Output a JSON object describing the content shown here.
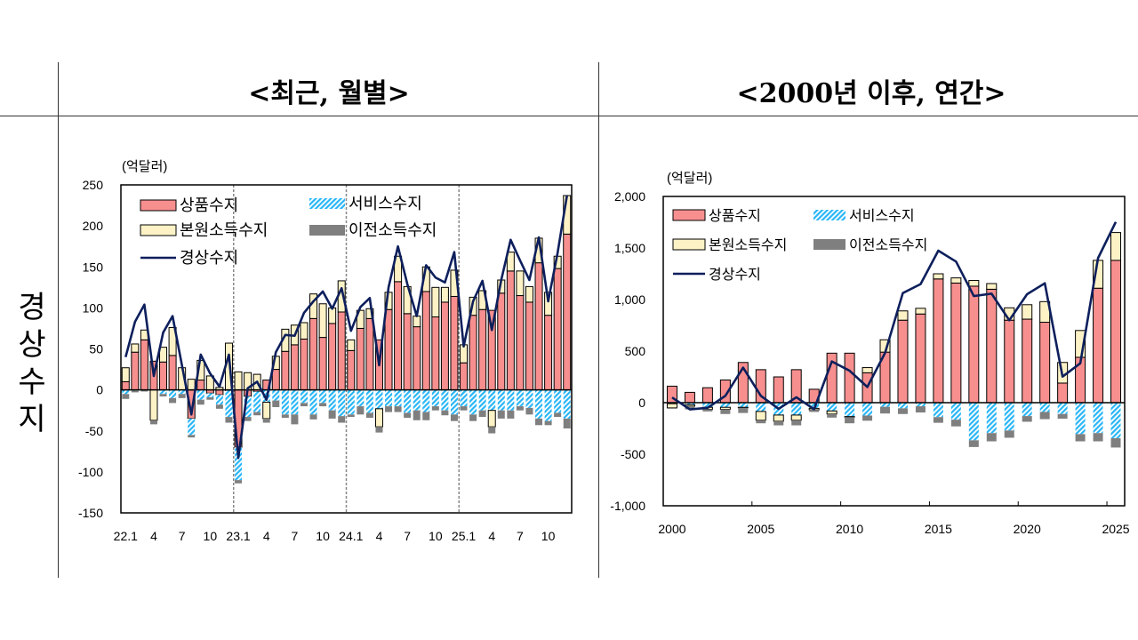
{
  "header": {
    "left_title": "<최근, 월별>",
    "right_title": "<2000년 이후, 연간>",
    "row_label": "경상수지"
  },
  "colors": {
    "goods": "#f78f8f",
    "services": "#29b6f6",
    "primary_income": "#fdf2c6",
    "secondary_income": "#7f7f7f",
    "current_account": "#0d1f5c"
  },
  "chart_data": [
    {
      "type": "bar",
      "stacked": true,
      "unit_label": "(억달러)",
      "ylim": [
        -150,
        250
      ],
      "y_ticks": [
        "250",
        "200",
        "150",
        "100",
        "50",
        "0",
        "-50",
        "-100",
        "-150"
      ],
      "y_tick_values": [
        250,
        200,
        150,
        100,
        50,
        0,
        -50,
        -100,
        -150
      ],
      "grid": false,
      "legend_position": "top-left",
      "categories": [
        "22.1",
        "22.2",
        "22.3",
        "22.4",
        "22.5",
        "22.6",
        "22.7",
        "22.8",
        "22.9",
        "22.10",
        "22.11",
        "22.12",
        "23.1",
        "23.2",
        "23.3",
        "23.4",
        "23.5",
        "23.6",
        "23.7",
        "23.8",
        "23.9",
        "23.10",
        "23.11",
        "23.12",
        "24.1",
        "24.2",
        "24.3",
        "24.4",
        "24.5",
        "24.6",
        "24.7",
        "24.8",
        "24.9",
        "24.10",
        "24.11",
        "24.12",
        "25.1",
        "25.2",
        "25.3",
        "25.4",
        "25.5",
        "25.6",
        "25.7",
        "25.8",
        "25.9",
        "25.10",
        "25.11",
        "25.12"
      ],
      "x_tick_labels": [
        "22.1",
        "4",
        "7",
        "10",
        "23.1",
        "4",
        "7",
        "10",
        "24.1",
        "4",
        "7",
        "10",
        "25.1",
        "4",
        "7",
        "10"
      ],
      "year_dividers_after": [
        "22.12",
        "23.12",
        "24.12"
      ],
      "series": [
        {
          "name": "상품수지",
          "kind": "bar",
          "values": [
            10,
            46,
            61,
            35,
            34,
            42,
            0,
            -35,
            12,
            -4,
            -6,
            -1,
            -70,
            -8,
            -2,
            12,
            25,
            47,
            55,
            62,
            87,
            64,
            81,
            95,
            48,
            75,
            87,
            61,
            98,
            132,
            93,
            77,
            120,
            89,
            107,
            114,
            33,
            91,
            98,
            97,
            118,
            145,
            115,
            107,
            155,
            91,
            148,
            190
          ]
        },
        {
          "name": "서비스수지",
          "kind": "bar",
          "values": [
            -5,
            -1,
            0,
            0,
            -5,
            -10,
            -5,
            -20,
            -12,
            -5,
            -12,
            -32,
            -40,
            -25,
            -25,
            -15,
            -13,
            -30,
            -30,
            -16,
            -30,
            -16,
            -25,
            -32,
            -30,
            -20,
            -28,
            -23,
            -20,
            -20,
            -28,
            -25,
            -27,
            -20,
            -25,
            -30,
            -20,
            -30,
            -25,
            -25,
            -25,
            -25,
            -20,
            -22,
            -35,
            -38,
            -28,
            -35
          ]
        },
        {
          "name": "본원소득수지",
          "kind": "bar",
          "values": [
            17,
            10,
            12,
            -37,
            18,
            34,
            27,
            13,
            24,
            17,
            3,
            57,
            22,
            21,
            19,
            -20,
            16,
            27,
            24,
            20,
            30,
            41,
            19,
            38,
            13,
            22,
            12,
            -22,
            21,
            31,
            33,
            13,
            30,
            36,
            18,
            32,
            22,
            22,
            23,
            -20,
            16,
            23,
            30,
            19,
            30,
            28,
            15,
            47
          ]
        },
        {
          "name": "이전소득수지",
          "kind": "bar",
          "values": [
            -6,
            -2,
            -2,
            -5,
            -3,
            -6,
            -5,
            -3,
            -6,
            -3,
            -5,
            -7,
            -4,
            -5,
            -4,
            -5,
            -8,
            -4,
            -12,
            -4,
            -6,
            -4,
            -10,
            -8,
            -3,
            -10,
            -6,
            -7,
            -7,
            -7,
            -6,
            -12,
            -10,
            -5,
            -6,
            -8,
            -5,
            -8,
            -8,
            -8,
            -10,
            -10,
            -5,
            -8,
            -8,
            -5,
            -5,
            -12
          ]
        },
        {
          "name": "경상수지",
          "kind": "line",
          "values": [
            40,
            83,
            104,
            17,
            70,
            90,
            30,
            -30,
            43,
            20,
            4,
            43,
            -83,
            2,
            10,
            -12,
            46,
            67,
            66,
            94,
            108,
            120,
            99,
            124,
            72,
            101,
            112,
            30,
            125,
            175,
            129,
            90,
            152,
            137,
            131,
            168,
            53,
            108,
            133,
            73,
            134,
            183,
            158,
            134,
            186,
            108,
            167,
            237
          ]
        }
      ]
    },
    {
      "type": "bar",
      "stacked": true,
      "unit_label": "(억달러)",
      "ylim": [
        -1000,
        2000
      ],
      "y_ticks": [
        "2,000",
        "1,500",
        "1,000",
        "500",
        "0",
        "-500",
        "-1,000"
      ],
      "y_tick_values": [
        2000,
        1500,
        1000,
        500,
        0,
        -500,
        -1000
      ],
      "grid": false,
      "legend_position": "top-left",
      "categories": [
        "2000",
        "2001",
        "2002",
        "2003",
        "2004",
        "2005",
        "2006",
        "2007",
        "2008",
        "2009",
        "2010",
        "2011",
        "2012",
        "2013",
        "2014",
        "2015",
        "2016",
        "2017",
        "2018",
        "2019",
        "2020",
        "2021",
        "2022",
        "2023",
        "2024",
        "2025"
      ],
      "x_tick_labels": [
        "2000",
        "2005",
        "2010",
        "2015",
        "2020",
        "2025"
      ],
      "series": [
        {
          "name": "상품수지",
          "kind": "bar",
          "values": [
            160,
            100,
            145,
            220,
            390,
            320,
            250,
            320,
            130,
            480,
            480,
            290,
            490,
            800,
            860,
            1200,
            1160,
            1130,
            1100,
            800,
            810,
            780,
            190,
            440,
            1110,
            1380
          ]
        },
        {
          "name": "서비스수지",
          "kind": "bar",
          "values": [
            -10,
            -20,
            -45,
            -45,
            -45,
            -85,
            -120,
            -120,
            -55,
            -80,
            -135,
            -125,
            -40,
            -55,
            -35,
            -140,
            -165,
            -365,
            -295,
            -270,
            -130,
            -90,
            -110,
            -305,
            -295,
            -345
          ]
        },
        {
          "name": "본원소득수지",
          "kind": "bar",
          "values": [
            -40,
            -15,
            -20,
            -20,
            -5,
            -85,
            -60,
            -50,
            -15,
            -30,
            -5,
            50,
            120,
            90,
            55,
            50,
            50,
            55,
            55,
            120,
            140,
            200,
            200,
            260,
            270,
            270
          ]
        },
        {
          "name": "이전소득수지",
          "kind": "bar",
          "values": [
            -10,
            -30,
            -20,
            -45,
            -50,
            -30,
            -40,
            -50,
            -20,
            -35,
            -60,
            -50,
            -65,
            -55,
            -60,
            -55,
            -65,
            -65,
            -80,
            -70,
            -55,
            -70,
            -45,
            -70,
            -80,
            -90
          ]
        },
        {
          "name": "경상수지",
          "kind": "line",
          "values": [
            50,
            -65,
            -50,
            66,
            340,
            66,
            -60,
            52,
            -63,
            400,
            310,
            152,
            483,
            1063,
            1150,
            1474,
            1368,
            1034,
            1057,
            799,
            1052,
            1158,
            253,
            382,
            1402,
            1753
          ]
        }
      ]
    }
  ]
}
